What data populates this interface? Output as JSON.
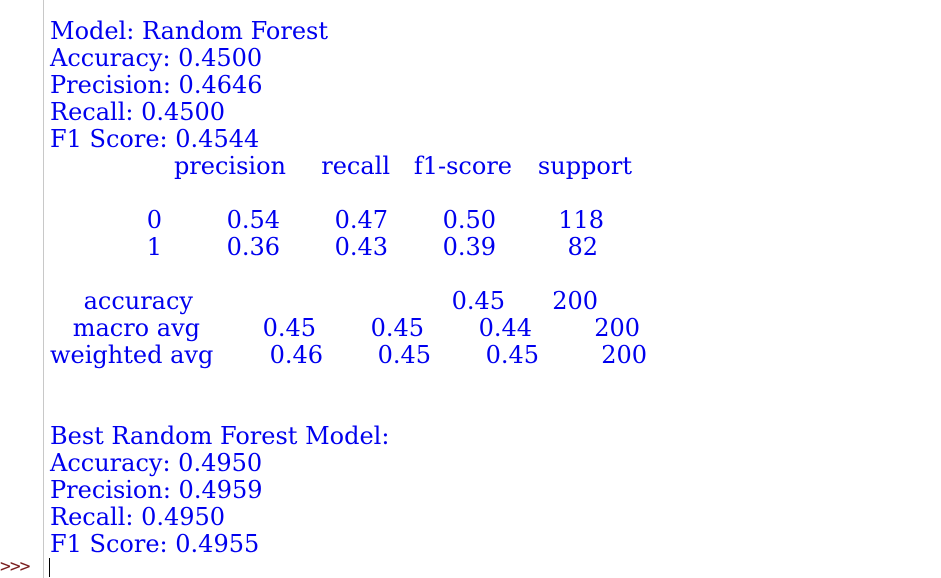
{
  "first_model": {
    "header": "Model: Random Forest",
    "accuracy": "Accuracy: 0.4500",
    "precision": "Precision: 0.4646",
    "recall": "Recall: 0.4500",
    "f1": "F1 Score: 0.4544"
  },
  "report": {
    "headers": {
      "precision": "precision",
      "recall": "recall",
      "f1": "f1-score",
      "support": "support"
    },
    "rows": [
      {
        "label": "0",
        "precision": "0.54",
        "recall": "0.47",
        "f1": "0.50",
        "support": "118"
      },
      {
        "label": "1",
        "precision": "0.36",
        "recall": "0.43",
        "f1": "0.39",
        "support": "82"
      }
    ],
    "accuracy": {
      "label": "accuracy",
      "f1": "0.45",
      "support": "200"
    },
    "macro_avg": {
      "label": "macro avg",
      "precision": "0.45",
      "recall": "0.45",
      "f1": "0.44",
      "support": "200"
    },
    "weighted_avg": {
      "label": "weighted avg",
      "precision": "0.46",
      "recall": "0.45",
      "f1": "0.45",
      "support": "200"
    }
  },
  "best_model": {
    "header": "Best Random Forest Model:",
    "accuracy": "Accuracy: 0.4950",
    "precision": "Precision: 0.4959",
    "recall": "Recall: 0.4950",
    "f1": "F1 Score: 0.4955"
  },
  "prompt": ">>>",
  "colors": {
    "output_text": "#0000ee",
    "prompt": "#7a1f1f",
    "background": "#ffffff"
  }
}
